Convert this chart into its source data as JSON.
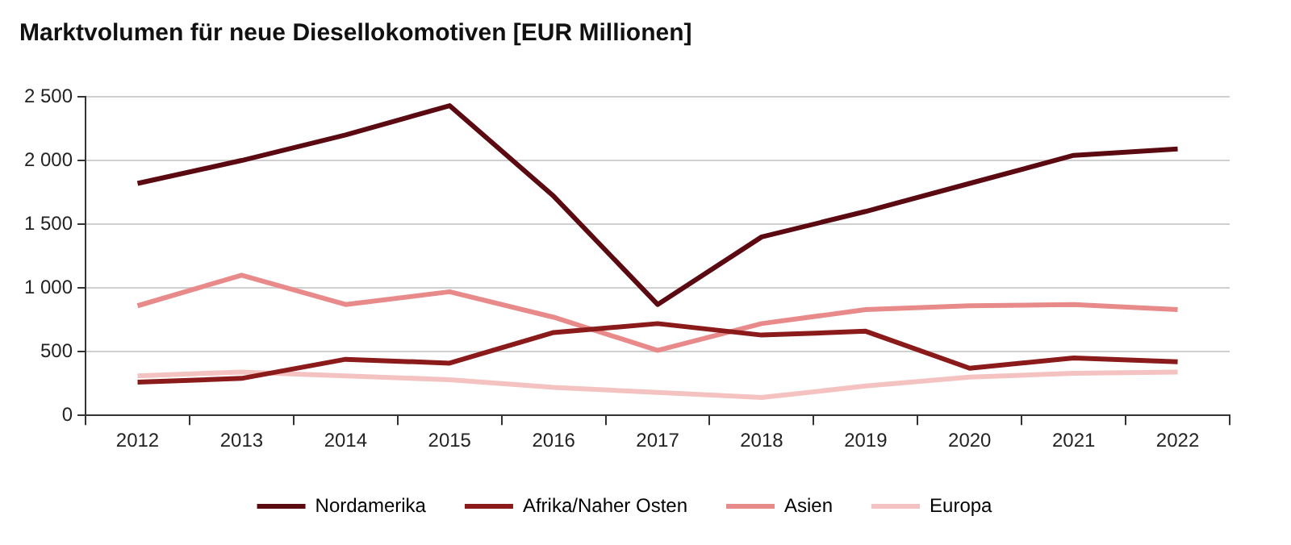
{
  "chart_data": {
    "type": "line",
    "title": "Marktvolumen für neue Diesellokomotiven [EUR Millionen]",
    "categories": [
      "2012",
      "2013",
      "2014",
      "2015",
      "2016",
      "2017",
      "2018",
      "2019",
      "2020",
      "2021",
      "2022"
    ],
    "series": [
      {
        "name": "Nordamerika",
        "color": "#5c0a12",
        "values": [
          1820,
          2000,
          2200,
          2430,
          1720,
          870,
          1400,
          1600,
          1820,
          2040,
          2090
        ]
      },
      {
        "name": "Afrika/Naher Osten",
        "color": "#8b1a1a",
        "values": [
          260,
          290,
          440,
          410,
          650,
          720,
          630,
          660,
          370,
          450,
          420
        ]
      },
      {
        "name": "Asien",
        "color": "#e88a8a",
        "values": [
          860,
          1100,
          870,
          970,
          770,
          510,
          720,
          830,
          860,
          870,
          830
        ]
      },
      {
        "name": "Europa",
        "color": "#f5c2c2",
        "values": [
          310,
          340,
          310,
          280,
          220,
          180,
          140,
          230,
          300,
          330,
          340
        ]
      }
    ],
    "ylim": [
      0,
      2500
    ],
    "yticks": [
      0,
      500,
      {
        "value": 1000,
        "label": "1 000"
      },
      {
        "value": 1500,
        "label": "1 500"
      },
      {
        "value": 2000,
        "label": "2 000"
      },
      {
        "value": 2500,
        "label": "2 500"
      }
    ],
    "grid": "y",
    "legend": "bottom",
    "marker": "none",
    "line_style": "solid"
  }
}
